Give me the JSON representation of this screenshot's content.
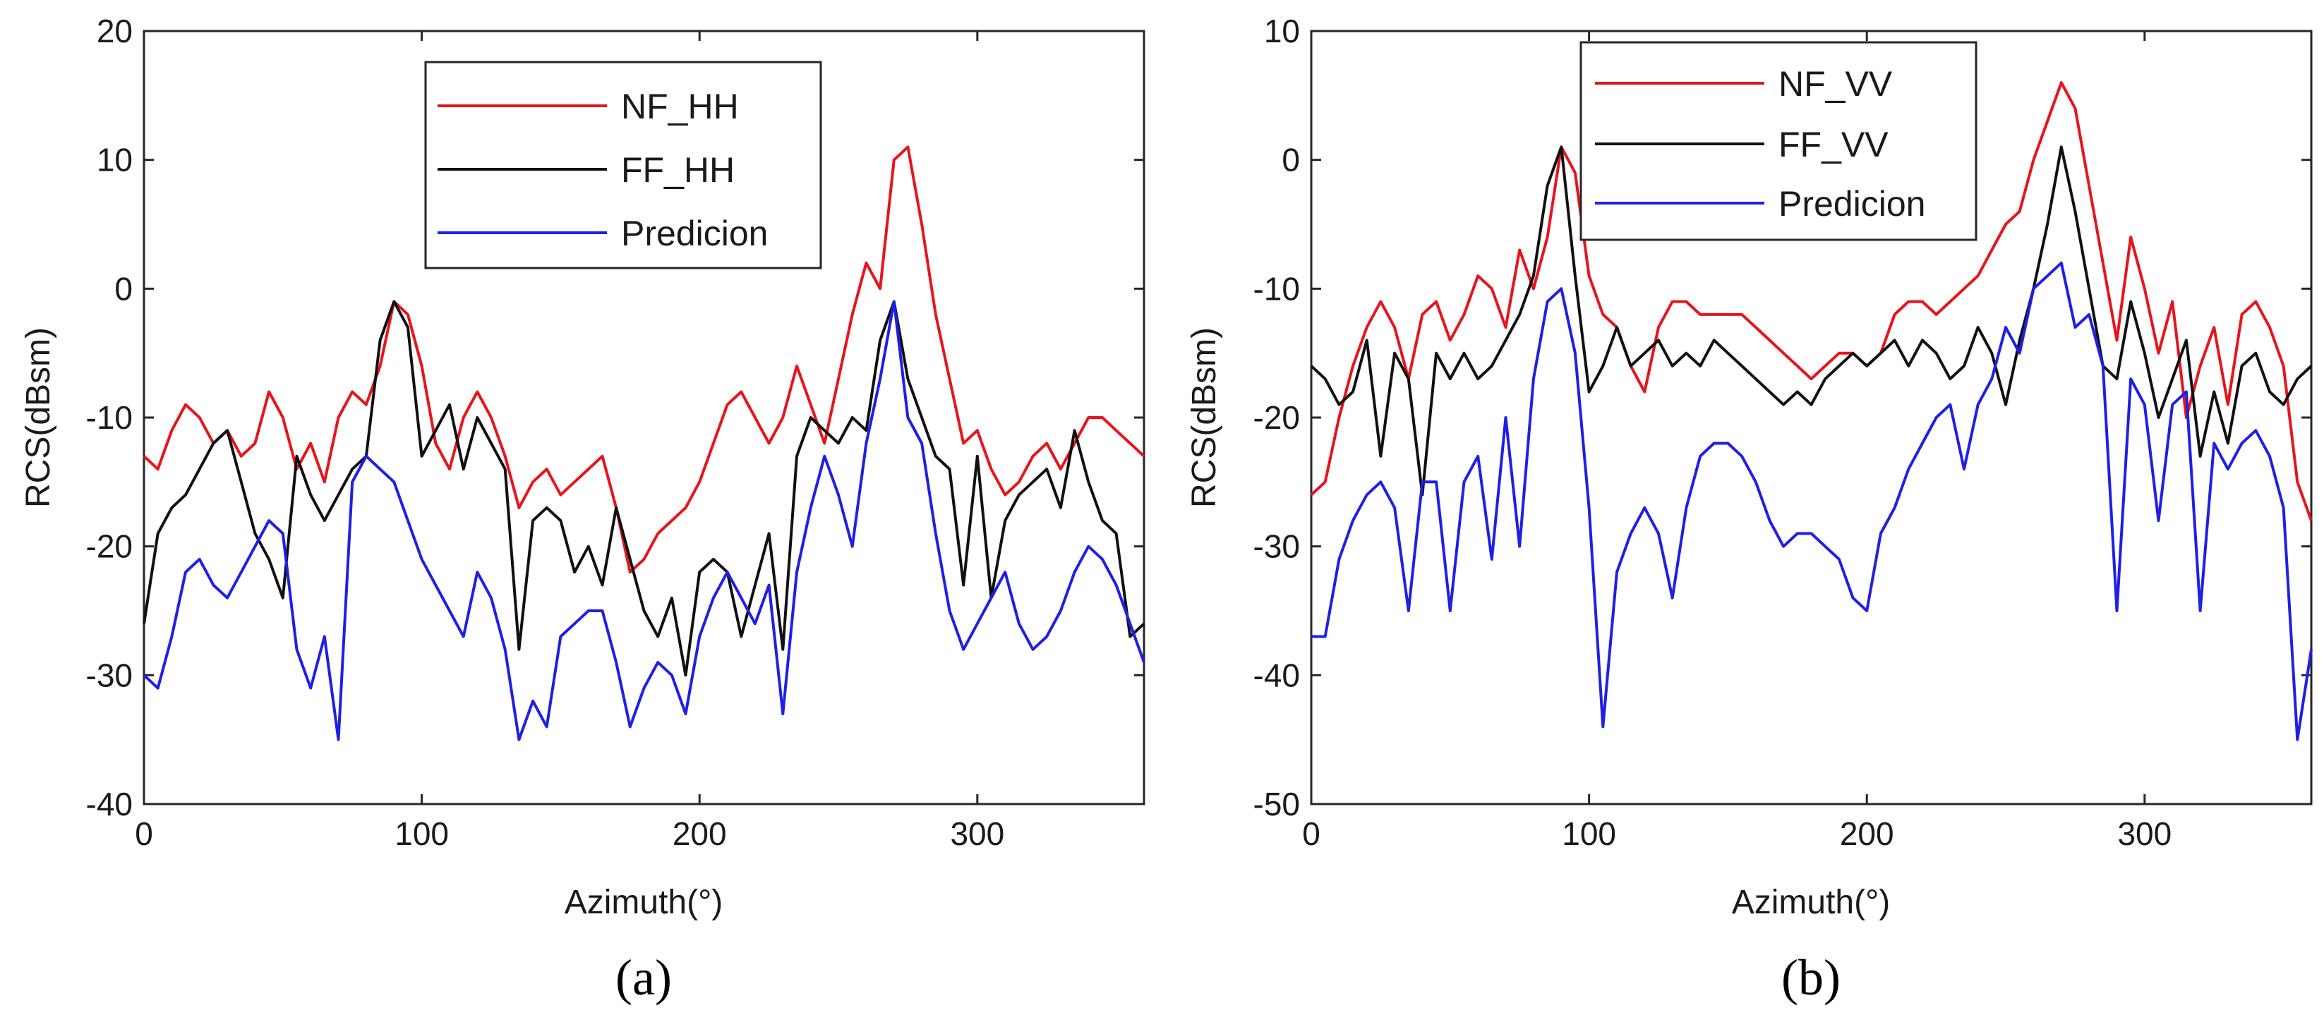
{
  "chart_data": [
    {
      "type": "line",
      "panel": "a",
      "caption": "(a)",
      "xlabel": "Azimuth(°)",
      "ylabel": "RCS(dBsm)",
      "xlim": [
        0,
        360
      ],
      "ylim": [
        -40,
        20
      ],
      "xticks": [
        0,
        100,
        200,
        300
      ],
      "yticks": [
        -40,
        -30,
        -20,
        -10,
        0,
        10,
        20
      ],
      "legend_position": "top-center",
      "x": [
        0,
        5,
        10,
        15,
        20,
        25,
        30,
        35,
        40,
        45,
        50,
        55,
        60,
        65,
        70,
        75,
        80,
        85,
        90,
        95,
        100,
        105,
        110,
        115,
        120,
        125,
        130,
        135,
        140,
        145,
        150,
        155,
        160,
        165,
        170,
        175,
        180,
        185,
        190,
        195,
        200,
        205,
        210,
        215,
        220,
        225,
        230,
        235,
        240,
        245,
        250,
        255,
        260,
        265,
        270,
        275,
        280,
        285,
        290,
        295,
        300,
        305,
        310,
        315,
        320,
        325,
        330,
        335,
        340,
        345,
        350,
        355,
        360
      ],
      "series": [
        {
          "name": "NF_HH",
          "color": "#e8141b",
          "values": [
            -13,
            -14,
            -11,
            -9,
            -10,
            -12,
            -11,
            -13,
            -12,
            -8,
            -10,
            -14,
            -12,
            -15,
            -10,
            -8,
            -9,
            -6,
            -1,
            -2,
            -6,
            -12,
            -14,
            -10,
            -8,
            -10,
            -13,
            -17,
            -15,
            -14,
            -16,
            -15,
            -14,
            -13,
            -17,
            -22,
            -21,
            -19,
            -18,
            -17,
            -15,
            -12,
            -9,
            -8,
            -10,
            -12,
            -10,
            -6,
            -9,
            -12,
            -7,
            -2,
            2,
            0,
            10,
            11,
            5,
            -2,
            -7,
            -12,
            -11,
            -14,
            -16,
            -15,
            -13,
            -12,
            -14,
            -12,
            -10,
            -10,
            -11,
            -12,
            -13
          ]
        },
        {
          "name": "FF_HH",
          "color": "#111111",
          "values": [
            -26,
            -19,
            -17,
            -16,
            -14,
            -12,
            -11,
            -15,
            -19,
            -21,
            -24,
            -13,
            -16,
            -18,
            -16,
            -14,
            -13,
            -4,
            -1,
            -3,
            -13,
            -11,
            -9,
            -14,
            -10,
            -12,
            -14,
            -28,
            -18,
            -17,
            -18,
            -22,
            -20,
            -23,
            -17,
            -21,
            -25,
            -27,
            -24,
            -30,
            -22,
            -21,
            -22,
            -27,
            -23,
            -19,
            -28,
            -13,
            -10,
            -11,
            -12,
            -10,
            -11,
            -4,
            -1,
            -7,
            -10,
            -13,
            -14,
            -23,
            -13,
            -24,
            -18,
            -16,
            -15,
            -14,
            -17,
            -11,
            -15,
            -18,
            -19,
            -27,
            -26
          ]
        },
        {
          "name": "Predicion",
          "color": "#1f1fe6",
          "values": [
            -30,
            -31,
            -27,
            -22,
            -21,
            -23,
            -24,
            -22,
            -20,
            -18,
            -19,
            -28,
            -31,
            -27,
            -35,
            -15,
            -13,
            -14,
            -15,
            -18,
            -21,
            -23,
            -25,
            -27,
            -22,
            -24,
            -28,
            -35,
            -32,
            -34,
            -27,
            -26,
            -25,
            -25,
            -29,
            -34,
            -31,
            -29,
            -30,
            -33,
            -27,
            -24,
            -22,
            -24,
            -26,
            -23,
            -33,
            -22,
            -17,
            -13,
            -16,
            -20,
            -12,
            -7,
            -1,
            -10,
            -12,
            -19,
            -25,
            -28,
            -26,
            -24,
            -22,
            -26,
            -28,
            -27,
            -25,
            -22,
            -20,
            -21,
            -23,
            -26,
            -29
          ]
        }
      ]
    },
    {
      "type": "line",
      "panel": "b",
      "caption": "(b)",
      "xlabel": "Azimuth(°)",
      "ylabel": "RCS(dBsm)",
      "xlim": [
        0,
        360
      ],
      "ylim": [
        -50,
        10
      ],
      "xticks": [
        0,
        100,
        200,
        300
      ],
      "yticks": [
        -50,
        -40,
        -30,
        -20,
        -10,
        0,
        10
      ],
      "legend_position": "top-center",
      "x": [
        0,
        5,
        10,
        15,
        20,
        25,
        30,
        35,
        40,
        45,
        50,
        55,
        60,
        65,
        70,
        75,
        80,
        85,
        90,
        95,
        100,
        105,
        110,
        115,
        120,
        125,
        130,
        135,
        140,
        145,
        150,
        155,
        160,
        165,
        170,
        175,
        180,
        185,
        190,
        195,
        200,
        205,
        210,
        215,
        220,
        225,
        230,
        235,
        240,
        245,
        250,
        255,
        260,
        265,
        270,
        275,
        280,
        285,
        290,
        295,
        300,
        305,
        310,
        315,
        320,
        325,
        330,
        335,
        340,
        345,
        350,
        355,
        360
      ],
      "series": [
        {
          "name": "NF_VV",
          "color": "#e8141b",
          "values": [
            -26,
            -25,
            -20,
            -16,
            -13,
            -11,
            -13,
            -17,
            -12,
            -11,
            -14,
            -12,
            -9,
            -10,
            -13,
            -7,
            -10,
            -6,
            1,
            -1,
            -9,
            -12,
            -13,
            -16,
            -18,
            -13,
            -11,
            -11,
            -12,
            -12,
            -12,
            -12,
            -13,
            -14,
            -15,
            -16,
            -17,
            -16,
            -15,
            -15,
            -16,
            -15,
            -12,
            -11,
            -11,
            -12,
            -11,
            -10,
            -9,
            -7,
            -5,
            -4,
            0,
            3,
            6,
            4,
            -2,
            -8,
            -14,
            -6,
            -10,
            -15,
            -11,
            -20,
            -16,
            -13,
            -19,
            -12,
            -11,
            -13,
            -16,
            -25,
            -28
          ]
        },
        {
          "name": "FF_VV",
          "color": "#111111",
          "values": [
            -16,
            -17,
            -19,
            -18,
            -14,
            -23,
            -15,
            -17,
            -26,
            -15,
            -17,
            -15,
            -17,
            -16,
            -14,
            -12,
            -9,
            -2,
            1,
            -9,
            -18,
            -16,
            -13,
            -16,
            -15,
            -14,
            -16,
            -15,
            -16,
            -14,
            -15,
            -16,
            -17,
            -18,
            -19,
            -18,
            -19,
            -17,
            -16,
            -15,
            -16,
            -15,
            -14,
            -16,
            -14,
            -15,
            -17,
            -16,
            -13,
            -15,
            -19,
            -14,
            -10,
            -5,
            1,
            -4,
            -10,
            -16,
            -17,
            -11,
            -15,
            -20,
            -17,
            -14,
            -23,
            -18,
            -22,
            -16,
            -15,
            -18,
            -19,
            -17,
            -16
          ]
        },
        {
          "name": "Predicion",
          "color": "#1f1fe6",
          "values": [
            -37,
            -37,
            -31,
            -28,
            -26,
            -25,
            -27,
            -35,
            -25,
            -25,
            -35,
            -25,
            -23,
            -31,
            -20,
            -30,
            -17,
            -11,
            -10,
            -15,
            -27,
            -44,
            -32,
            -29,
            -27,
            -29,
            -34,
            -27,
            -23,
            -22,
            -22,
            -23,
            -25,
            -28,
            -30,
            -29,
            -29,
            -30,
            -31,
            -34,
            -35,
            -29,
            -27,
            -24,
            -22,
            -20,
            -19,
            -24,
            -19,
            -17,
            -13,
            -15,
            -10,
            -9,
            -8,
            -13,
            -12,
            -16,
            -35,
            -17,
            -19,
            -28,
            -19,
            -18,
            -35,
            -22,
            -24,
            -22,
            -21,
            -23,
            -27,
            -45,
            -38
          ]
        }
      ]
    }
  ]
}
